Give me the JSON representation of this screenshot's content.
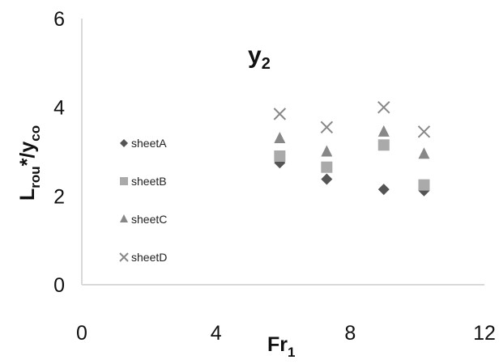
{
  "chart_data": {
    "type": "scatter",
    "title": "y",
    "title_subscript": "2",
    "xlabel": "Fr",
    "xlabel_subscript": "1",
    "ylabel_main": "L",
    "ylabel_sub1": "rou",
    "ylabel_mid": "*/y",
    "ylabel_sub2": "co",
    "xlim": [
      0,
      12
    ],
    "ylim": [
      0,
      6
    ],
    "xticks": [
      0,
      4,
      8,
      12
    ],
    "yticks": [
      0,
      2,
      4,
      6
    ],
    "xtick_labels": [
      "0",
      "4",
      "8",
      "12"
    ],
    "ytick_labels": [
      "0",
      "2",
      "4",
      "6"
    ],
    "grid": false,
    "legend_position": "left",
    "series": [
      {
        "name": "sheetA",
        "marker": "diamond",
        "color": "#555555",
        "points": [
          [
            5.9,
            2.75
          ],
          [
            7.3,
            2.38
          ],
          [
            9.0,
            2.15
          ],
          [
            10.2,
            2.12
          ]
        ]
      },
      {
        "name": "sheetB",
        "marker": "square",
        "color": "#aaaaaa",
        "points": [
          [
            5.9,
            2.9
          ],
          [
            7.3,
            2.65
          ],
          [
            9.0,
            3.15
          ],
          [
            10.2,
            2.25
          ]
        ]
      },
      {
        "name": "sheetC",
        "marker": "triangle",
        "color": "#888888",
        "points": [
          [
            5.9,
            3.3
          ],
          [
            7.3,
            3.0
          ],
          [
            9.0,
            3.45
          ],
          [
            10.2,
            2.95
          ]
        ]
      },
      {
        "name": "sheetD",
        "marker": "x",
        "color": "#888888",
        "points": [
          [
            5.9,
            3.85
          ],
          [
            7.3,
            3.55
          ],
          [
            9.0,
            4.0
          ],
          [
            10.2,
            3.45
          ]
        ]
      }
    ]
  }
}
